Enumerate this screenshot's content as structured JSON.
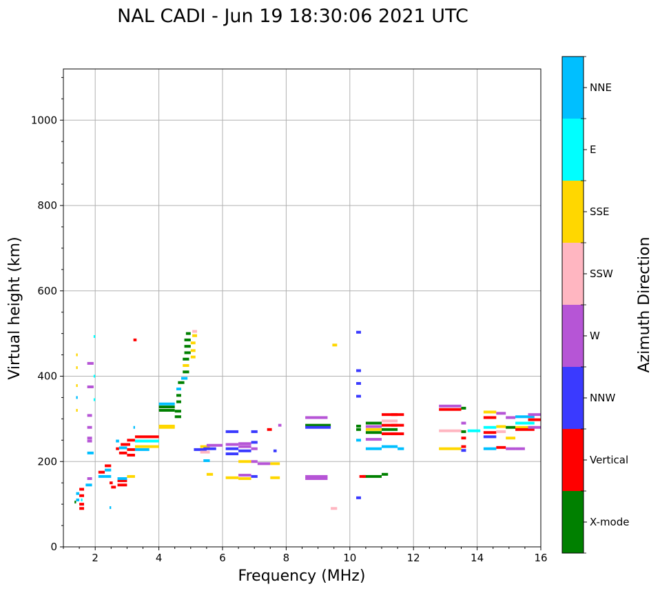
{
  "chart_data": {
    "type": "scatter",
    "title": "NAL CADI - Jun 19 18:30:06 2021 UTC",
    "xlabel": "Frequency (MHz)",
    "ylabel": "Virtual height (km)",
    "xlim": [
      1,
      16
    ],
    "ylim": [
      0,
      1120
    ],
    "xticks": [
      2,
      4,
      6,
      8,
      10,
      12,
      14,
      16
    ],
    "yticks": [
      0,
      200,
      400,
      600,
      800,
      1000
    ],
    "grid": true,
    "colorbar": {
      "label": "Azimuth Direction",
      "categories": [
        {
          "name": "X-mode",
          "color": "#008000"
        },
        {
          "name": "Vertical",
          "color": "#ff0000"
        },
        {
          "name": "NNW",
          "color": "#3a3aff"
        },
        {
          "name": "W",
          "color": "#b655d6"
        },
        {
          "name": "SSW",
          "color": "#ffb6c1"
        },
        {
          "name": "SSE",
          "color": "#ffd700"
        },
        {
          "name": "E",
          "color": "#00ffff"
        },
        {
          "name": "NNE",
          "color": "#00bfff"
        }
      ]
    },
    "echoes": [
      {
        "f": 1.35,
        "f2": 1.4,
        "h": 105,
        "c": "X-mode"
      },
      {
        "f": 1.4,
        "f2": 1.5,
        "h": 110,
        "c": "NNE"
      },
      {
        "f": 1.4,
        "f2": 1.5,
        "h": 125,
        "c": "NNE"
      },
      {
        "f": 1.5,
        "f2": 1.65,
        "h": 90,
        "c": "Vertical"
      },
      {
        "f": 1.5,
        "f2": 1.65,
        "h": 100,
        "c": "Vertical"
      },
      {
        "f": 1.5,
        "f2": 1.65,
        "h": 120,
        "c": "Vertical"
      },
      {
        "f": 1.5,
        "f2": 1.65,
        "h": 135,
        "c": "Vertical"
      },
      {
        "f": 1.55,
        "f2": 1.6,
        "h": 110,
        "c": "E"
      },
      {
        "f": 1.7,
        "f2": 1.9,
        "h": 145,
        "c": "NNE"
      },
      {
        "f": 1.75,
        "f2": 1.9,
        "h": 160,
        "c": "W"
      },
      {
        "f": 1.75,
        "f2": 1.95,
        "h": 220,
        "c": "NNE"
      },
      {
        "f": 1.75,
        "f2": 1.9,
        "h": 248,
        "c": "W"
      },
      {
        "f": 1.75,
        "f2": 1.9,
        "h": 255,
        "c": "W"
      },
      {
        "f": 1.75,
        "f2": 1.9,
        "h": 280,
        "c": "W"
      },
      {
        "f": 1.75,
        "f2": 1.9,
        "h": 308,
        "c": "W"
      },
      {
        "f": 1.75,
        "f2": 1.95,
        "h": 375,
        "c": "W"
      },
      {
        "f": 1.75,
        "f2": 1.95,
        "h": 430,
        "c": "W"
      },
      {
        "f": 1.4,
        "f2": 1.45,
        "h": 320,
        "c": "SSE"
      },
      {
        "f": 1.4,
        "f2": 1.45,
        "h": 350,
        "c": "NNE"
      },
      {
        "f": 1.4,
        "f2": 1.45,
        "h": 378,
        "c": "SSE"
      },
      {
        "f": 1.4,
        "f2": 1.45,
        "h": 420,
        "c": "SSE"
      },
      {
        "f": 1.4,
        "f2": 1.45,
        "h": 450,
        "c": "SSE"
      },
      {
        "f": 1.95,
        "f2": 2.0,
        "h": 345,
        "c": "E"
      },
      {
        "f": 1.95,
        "f2": 2.0,
        "h": 400,
        "c": "E"
      },
      {
        "f": 1.95,
        "f2": 2.0,
        "h": 493,
        "c": "E"
      },
      {
        "f": 2.1,
        "f2": 2.3,
        "h": 165,
        "c": "NNE"
      },
      {
        "f": 2.1,
        "f2": 2.3,
        "h": 175,
        "c": "Vertical"
      },
      {
        "f": 2.3,
        "f2": 2.5,
        "h": 165,
        "c": "NNE"
      },
      {
        "f": 2.3,
        "f2": 2.5,
        "h": 180,
        "c": "NNE"
      },
      {
        "f": 2.3,
        "f2": 2.5,
        "h": 190,
        "c": "Vertical"
      },
      {
        "f": 2.45,
        "f2": 2.55,
        "h": 150,
        "c": "Vertical"
      },
      {
        "f": 2.5,
        "f2": 2.65,
        "h": 140,
        "c": "Vertical"
      },
      {
        "f": 2.45,
        "f2": 2.5,
        "h": 92,
        "c": "NNE"
      },
      {
        "f": 2.65,
        "f2": 2.75,
        "h": 230,
        "c": "Vertical"
      },
      {
        "f": 2.65,
        "f2": 2.75,
        "h": 248,
        "c": "NNE"
      },
      {
        "f": 2.7,
        "f2": 3.0,
        "h": 145,
        "c": "Vertical"
      },
      {
        "f": 2.7,
        "f2": 3.0,
        "h": 155,
        "c": "Vertical"
      },
      {
        "f": 2.7,
        "f2": 3.0,
        "h": 160,
        "c": "NNE"
      },
      {
        "f": 2.75,
        "f2": 3.0,
        "h": 220,
        "c": "Vertical"
      },
      {
        "f": 2.75,
        "f2": 3.0,
        "h": 232,
        "c": "NNE"
      },
      {
        "f": 2.8,
        "f2": 3.1,
        "h": 240,
        "c": "Vertical"
      },
      {
        "f": 3.0,
        "f2": 3.25,
        "h": 215,
        "c": "Vertical"
      },
      {
        "f": 3.0,
        "f2": 3.25,
        "h": 228,
        "c": "Vertical"
      },
      {
        "f": 3.0,
        "f2": 3.25,
        "h": 250,
        "c": "Vertical"
      },
      {
        "f": 3.0,
        "f2": 3.25,
        "h": 165,
        "c": "SSE"
      },
      {
        "f": 3.2,
        "f2": 3.25,
        "h": 280,
        "c": "NNE"
      },
      {
        "f": 3.2,
        "f2": 3.3,
        "h": 485,
        "c": "Vertical"
      },
      {
        "f": 3.25,
        "f2": 4.0,
        "h": 235,
        "c": "SSE"
      },
      {
        "f": 3.25,
        "f2": 4.0,
        "h": 248,
        "c": "E"
      },
      {
        "f": 3.25,
        "f2": 4.0,
        "h": 258,
        "c": "Vertical"
      },
      {
        "f": 3.25,
        "f2": 3.7,
        "h": 228,
        "c": "NNE"
      },
      {
        "f": 4.0,
        "f2": 4.5,
        "h": 280,
        "c": "SSE"
      },
      {
        "f": 4.0,
        "f2": 4.5,
        "h": 283,
        "c": "SSE"
      },
      {
        "f": 4.0,
        "f2": 4.5,
        "h": 320,
        "c": "X-mode"
      },
      {
        "f": 4.0,
        "f2": 4.5,
        "h": 328,
        "c": "X-mode"
      },
      {
        "f": 4.0,
        "f2": 4.5,
        "h": 335,
        "c": "NNE"
      },
      {
        "f": 4.5,
        "f2": 4.7,
        "h": 305,
        "c": "X-mode"
      },
      {
        "f": 4.5,
        "f2": 4.7,
        "h": 318,
        "c": "X-mode"
      },
      {
        "f": 4.55,
        "f2": 4.7,
        "h": 340,
        "c": "X-mode"
      },
      {
        "f": 4.55,
        "f2": 4.7,
        "h": 355,
        "c": "X-mode"
      },
      {
        "f": 4.55,
        "f2": 4.7,
        "h": 370,
        "c": "NNE"
      },
      {
        "f": 4.6,
        "f2": 4.8,
        "h": 385,
        "c": "X-mode"
      },
      {
        "f": 4.7,
        "f2": 4.9,
        "h": 395,
        "c": "NNE"
      },
      {
        "f": 4.75,
        "f2": 4.95,
        "h": 410,
        "c": "X-mode"
      },
      {
        "f": 4.75,
        "f2": 4.95,
        "h": 425,
        "c": "SSE"
      },
      {
        "f": 4.75,
        "f2": 4.95,
        "h": 440,
        "c": "X-mode"
      },
      {
        "f": 4.8,
        "f2": 5.0,
        "h": 455,
        "c": "X-mode"
      },
      {
        "f": 4.8,
        "f2": 5.0,
        "h": 470,
        "c": "X-mode"
      },
      {
        "f": 4.8,
        "f2": 5.0,
        "h": 485,
        "c": "X-mode"
      },
      {
        "f": 4.85,
        "f2": 5.0,
        "h": 500,
        "c": "X-mode"
      },
      {
        "f": 5.0,
        "f2": 5.15,
        "h": 445,
        "c": "SSE"
      },
      {
        "f": 5.0,
        "f2": 5.15,
        "h": 460,
        "c": "SSE"
      },
      {
        "f": 5.0,
        "f2": 5.15,
        "h": 478,
        "c": "SSE"
      },
      {
        "f": 5.05,
        "f2": 5.2,
        "h": 495,
        "c": "SSE"
      },
      {
        "f": 5.05,
        "f2": 5.2,
        "h": 505,
        "c": "SSW"
      },
      {
        "f": 5.1,
        "f2": 5.5,
        "h": 228,
        "c": "NNW"
      },
      {
        "f": 5.3,
        "f2": 5.6,
        "h": 235,
        "c": "SSE"
      },
      {
        "f": 5.4,
        "f2": 5.8,
        "h": 230,
        "c": "NNW"
      },
      {
        "f": 5.5,
        "f2": 6.0,
        "h": 238,
        "c": "W"
      },
      {
        "f": 5.4,
        "f2": 5.6,
        "h": 202,
        "c": "NNE"
      },
      {
        "f": 5.5,
        "f2": 5.7,
        "h": 170,
        "c": "SSE"
      },
      {
        "f": 5.3,
        "f2": 5.6,
        "h": 222,
        "c": "SSW"
      },
      {
        "f": 6.1,
        "f2": 6.5,
        "h": 218,
        "c": "NNW"
      },
      {
        "f": 6.1,
        "f2": 6.5,
        "h": 230,
        "c": "NNW"
      },
      {
        "f": 6.1,
        "f2": 6.5,
        "h": 240,
        "c": "W"
      },
      {
        "f": 6.1,
        "f2": 6.5,
        "h": 270,
        "c": "NNW"
      },
      {
        "f": 6.1,
        "f2": 6.5,
        "h": 162,
        "c": "SSE"
      },
      {
        "f": 6.5,
        "f2": 6.9,
        "h": 160,
        "c": "SSE"
      },
      {
        "f": 6.5,
        "f2": 6.9,
        "h": 168,
        "c": "W"
      },
      {
        "f": 6.5,
        "f2": 6.9,
        "h": 200,
        "c": "SSE"
      },
      {
        "f": 6.5,
        "f2": 6.9,
        "h": 225,
        "c": "NNW"
      },
      {
        "f": 6.5,
        "f2": 6.9,
        "h": 235,
        "c": "W"
      },
      {
        "f": 6.5,
        "f2": 6.9,
        "h": 242,
        "c": "W"
      },
      {
        "f": 6.9,
        "f2": 7.1,
        "h": 165,
        "c": "NNW"
      },
      {
        "f": 6.9,
        "f2": 7.1,
        "h": 200,
        "c": "W"
      },
      {
        "f": 6.9,
        "f2": 7.1,
        "h": 230,
        "c": "W"
      },
      {
        "f": 6.9,
        "f2": 7.1,
        "h": 245,
        "c": "NNW"
      },
      {
        "f": 6.9,
        "f2": 7.1,
        "h": 270,
        "c": "NNW"
      },
      {
        "f": 7.4,
        "f2": 7.55,
        "h": 275,
        "c": "Vertical"
      },
      {
        "f": 7.1,
        "f2": 7.5,
        "h": 195,
        "c": "W"
      },
      {
        "f": 7.5,
        "f2": 7.8,
        "h": 195,
        "c": "SSE"
      },
      {
        "f": 7.6,
        "f2": 7.7,
        "h": 225,
        "c": "NNW"
      },
      {
        "f": 7.5,
        "f2": 7.8,
        "h": 162,
        "c": "SSE"
      },
      {
        "f": 7.75,
        "f2": 7.85,
        "h": 285,
        "c": "W"
      },
      {
        "f": 8.6,
        "f2": 9.3,
        "h": 303,
        "c": "W"
      },
      {
        "f": 8.6,
        "f2": 9.4,
        "h": 285,
        "c": "X-mode"
      },
      {
        "f": 8.6,
        "f2": 9.4,
        "h": 280,
        "c": "NNW"
      },
      {
        "f": 8.6,
        "f2": 9.3,
        "h": 160,
        "c": "W"
      },
      {
        "f": 8.6,
        "f2": 9.3,
        "h": 165,
        "c": "W"
      },
      {
        "f": 9.4,
        "f2": 9.6,
        "h": 90,
        "c": "SSW"
      },
      {
        "f": 9.45,
        "f2": 9.6,
        "h": 473,
        "c": "SSE"
      },
      {
        "f": 10.2,
        "f2": 10.35,
        "h": 503,
        "c": "NNW"
      },
      {
        "f": 10.2,
        "f2": 10.35,
        "h": 413,
        "c": "NNW"
      },
      {
        "f": 10.2,
        "f2": 10.35,
        "h": 383,
        "c": "NNW"
      },
      {
        "f": 10.2,
        "f2": 10.35,
        "h": 353,
        "c": "NNW"
      },
      {
        "f": 10.2,
        "f2": 10.35,
        "h": 115,
        "c": "NNW"
      },
      {
        "f": 10.2,
        "f2": 10.35,
        "h": 250,
        "c": "NNE"
      },
      {
        "f": 10.2,
        "f2": 10.35,
        "h": 275,
        "c": "X-mode"
      },
      {
        "f": 10.2,
        "f2": 10.35,
        "h": 283,
        "c": "X-mode"
      },
      {
        "f": 10.4,
        "f2": 11.0,
        "h": 165,
        "c": "X-mode"
      },
      {
        "f": 10.3,
        "f2": 10.5,
        "h": 165,
        "c": "Vertical"
      },
      {
        "f": 10.5,
        "f2": 11.0,
        "h": 230,
        "c": "NNE"
      },
      {
        "f": 10.5,
        "f2": 11.0,
        "h": 252,
        "c": "W"
      },
      {
        "f": 10.5,
        "f2": 11.0,
        "h": 268,
        "c": "X-mode"
      },
      {
        "f": 10.5,
        "f2": 11.0,
        "h": 275,
        "c": "SSE"
      },
      {
        "f": 10.5,
        "f2": 11.0,
        "h": 282,
        "c": "W"
      },
      {
        "f": 10.5,
        "f2": 11.0,
        "h": 290,
        "c": "X-mode"
      },
      {
        "f": 11.0,
        "f2": 11.5,
        "h": 235,
        "c": "NNE"
      },
      {
        "f": 11.0,
        "f2": 11.5,
        "h": 265,
        "c": "Vertical"
      },
      {
        "f": 11.0,
        "f2": 11.5,
        "h": 275,
        "c": "X-mode"
      },
      {
        "f": 11.0,
        "f2": 11.5,
        "h": 285,
        "c": "Vertical"
      },
      {
        "f": 11.0,
        "f2": 11.5,
        "h": 295,
        "c": "SSW"
      },
      {
        "f": 11.0,
        "f2": 11.5,
        "h": 310,
        "c": "Vertical"
      },
      {
        "f": 11.0,
        "f2": 11.2,
        "h": 170,
        "c": "X-mode"
      },
      {
        "f": 11.3,
        "f2": 11.7,
        "h": 265,
        "c": "Vertical"
      },
      {
        "f": 11.3,
        "f2": 11.7,
        "h": 285,
        "c": "Vertical"
      },
      {
        "f": 11.3,
        "f2": 11.7,
        "h": 310,
        "c": "Vertical"
      },
      {
        "f": 11.5,
        "f2": 11.7,
        "h": 230,
        "c": "NNE"
      },
      {
        "f": 12.8,
        "f2": 13.5,
        "h": 330,
        "c": "W"
      },
      {
        "f": 12.8,
        "f2": 13.5,
        "h": 322,
        "c": "Vertical"
      },
      {
        "f": 12.8,
        "f2": 13.5,
        "h": 272,
        "c": "SSW"
      },
      {
        "f": 12.8,
        "f2": 13.5,
        "h": 230,
        "c": "SSE"
      },
      {
        "f": 13.5,
        "f2": 13.65,
        "h": 325,
        "c": "X-mode"
      },
      {
        "f": 13.5,
        "f2": 13.65,
        "h": 290,
        "c": "W"
      },
      {
        "f": 13.5,
        "f2": 13.65,
        "h": 270,
        "c": "X-mode"
      },
      {
        "f": 13.5,
        "f2": 13.65,
        "h": 255,
        "c": "Vertical"
      },
      {
        "f": 13.5,
        "f2": 13.65,
        "h": 235,
        "c": "Vertical"
      },
      {
        "f": 13.5,
        "f2": 13.65,
        "h": 226,
        "c": "NNW"
      },
      {
        "f": 13.7,
        "f2": 14.1,
        "h": 272,
        "c": "E"
      },
      {
        "f": 14.2,
        "f2": 14.6,
        "h": 316,
        "c": "SSE"
      },
      {
        "f": 14.2,
        "f2": 14.6,
        "h": 303,
        "c": "Vertical"
      },
      {
        "f": 14.2,
        "f2": 14.6,
        "h": 280,
        "c": "E"
      },
      {
        "f": 14.2,
        "f2": 14.6,
        "h": 268,
        "c": "Vertical"
      },
      {
        "f": 14.2,
        "f2": 14.6,
        "h": 258,
        "c": "NNW"
      },
      {
        "f": 14.2,
        "f2": 14.6,
        "h": 230,
        "c": "NNE"
      },
      {
        "f": 14.6,
        "f2": 14.9,
        "h": 313,
        "c": "W"
      },
      {
        "f": 14.6,
        "f2": 14.9,
        "h": 282,
        "c": "SSE"
      },
      {
        "f": 14.6,
        "f2": 14.9,
        "h": 270,
        "c": "SSW"
      },
      {
        "f": 14.6,
        "f2": 14.9,
        "h": 233,
        "c": "Vertical"
      },
      {
        "f": 14.9,
        "f2": 15.2,
        "h": 303,
        "c": "W"
      },
      {
        "f": 14.9,
        "f2": 15.2,
        "h": 280,
        "c": "X-mode"
      },
      {
        "f": 14.9,
        "f2": 15.2,
        "h": 255,
        "c": "SSE"
      },
      {
        "f": 14.9,
        "f2": 15.2,
        "h": 230,
        "c": "W"
      },
      {
        "f": 15.2,
        "f2": 15.8,
        "h": 305,
        "c": "NNE"
      },
      {
        "f": 15.2,
        "f2": 15.8,
        "h": 290,
        "c": "E"
      },
      {
        "f": 15.2,
        "f2": 15.8,
        "h": 280,
        "c": "SSE"
      },
      {
        "f": 15.2,
        "f2": 15.8,
        "h": 275,
        "c": "Vertical"
      },
      {
        "f": 15.2,
        "f2": 15.5,
        "h": 230,
        "c": "W"
      },
      {
        "f": 15.6,
        "f2": 16.0,
        "h": 310,
        "c": "W"
      },
      {
        "f": 15.6,
        "f2": 16.0,
        "h": 298,
        "c": "Vertical"
      },
      {
        "f": 15.6,
        "f2": 16.0,
        "h": 280,
        "c": "W"
      }
    ]
  }
}
